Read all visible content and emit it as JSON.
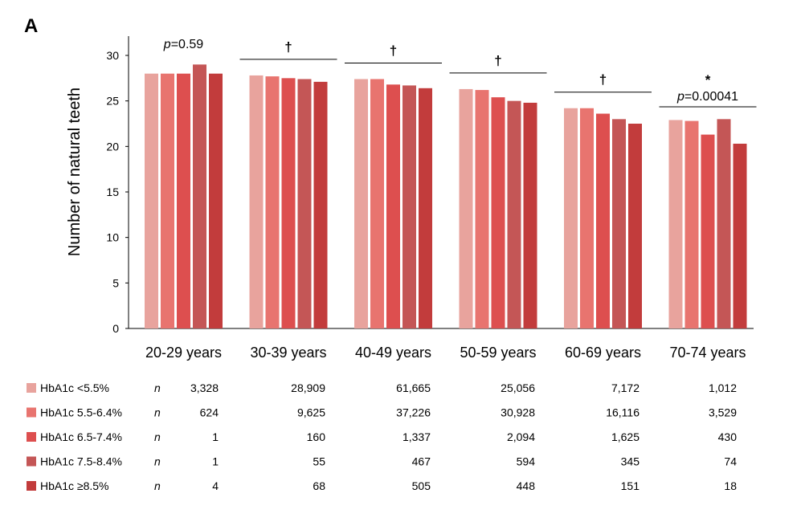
{
  "panel_label": "A",
  "chart_data": {
    "type": "bar",
    "title": "",
    "ylabel": "Number of natural teeth",
    "xlabel": "",
    "ylim": [
      0,
      30
    ],
    "yticks": [
      "0",
      "5",
      "10",
      "15",
      "20",
      "25",
      "30"
    ],
    "categories": [
      "20-29 years",
      "30-39 years",
      "40-49 years",
      "50-59 years",
      "60-69 years",
      "70-74 years"
    ],
    "series": [
      {
        "name": "HbA1c <5.5%",
        "color": "#e8a39d",
        "values": [
          28.0,
          27.8,
          27.4,
          26.3,
          24.2,
          22.9
        ]
      },
      {
        "name": "HbA1c 5.5-6.4%",
        "color": "#e8746f",
        "values": [
          28.0,
          27.7,
          27.4,
          26.2,
          24.2,
          22.8
        ]
      },
      {
        "name": "HbA1c 6.5-7.4%",
        "color": "#dd4f4f",
        "values": [
          28.0,
          27.5,
          26.8,
          25.4,
          23.6,
          21.3
        ]
      },
      {
        "name": "HbA1c 7.5-8.4%",
        "color": "#c45656",
        "values": [
          29.0,
          27.4,
          26.7,
          25.0,
          23.0,
          23.0
        ]
      },
      {
        "name": "HbA1c ≥8.5%",
        "color": "#c23c3c",
        "values": [
          28.0,
          27.1,
          26.4,
          24.8,
          22.5,
          20.3
        ]
      }
    ],
    "annotations": [
      {
        "category": "20-29 years",
        "symbol": "",
        "p_prefix": "p",
        "p_text": "=0.59",
        "bracket": false
      },
      {
        "category": "30-39 years",
        "symbol": "†",
        "p_prefix": "",
        "p_text": "",
        "bracket": true
      },
      {
        "category": "40-49 years",
        "symbol": "†",
        "p_prefix": "",
        "p_text": "",
        "bracket": true
      },
      {
        "category": "50-59 years",
        "symbol": "†",
        "p_prefix": "",
        "p_text": "",
        "bracket": true
      },
      {
        "category": "60-69 years",
        "symbol": "†",
        "p_prefix": "",
        "p_text": "",
        "bracket": true
      },
      {
        "category": "70-74 years",
        "symbol": "*",
        "p_prefix": "p",
        "p_text": "=0.00041",
        "bracket": true
      }
    ],
    "table": {
      "n_label": "n",
      "rows": [
        {
          "label": "HbA1c <5.5%",
          "values": [
            "3,328",
            "28,909",
            "61,665",
            "25,056",
            "7,172",
            "1,012"
          ]
        },
        {
          "label": "HbA1c 5.5-6.4%",
          "values": [
            "624",
            "9,625",
            "37,226",
            "30,928",
            "16,116",
            "3,529"
          ]
        },
        {
          "label": "HbA1c 6.5-7.4%",
          "values": [
            "1",
            "160",
            "1,337",
            "2,094",
            "1,625",
            "430"
          ]
        },
        {
          "label": "HbA1c 7.5-8.4%",
          "values": [
            "1",
            "55",
            "467",
            "594",
            "345",
            "74"
          ]
        },
        {
          "label": "HbA1c ≥8.5%",
          "values": [
            "4",
            "68",
            "505",
            "448",
            "151",
            "18"
          ]
        }
      ]
    }
  }
}
